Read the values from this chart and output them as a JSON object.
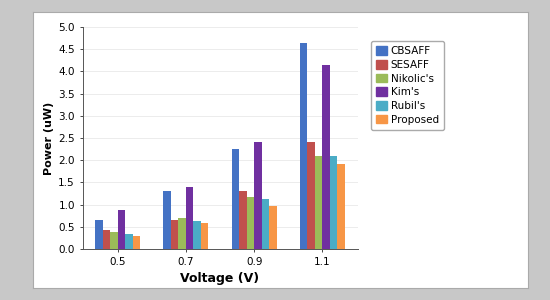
{
  "categories": [
    "0.5",
    "0.7",
    "0.9",
    "1.1"
  ],
  "series": {
    "CBSAFF": [
      0.65,
      1.3,
      2.25,
      4.65
    ],
    "SESAFF": [
      0.42,
      0.65,
      1.3,
      2.42
    ],
    "Nikolic's": [
      0.38,
      0.7,
      1.18,
      2.1
    ],
    "Kim's": [
      0.87,
      1.4,
      2.4,
      4.15
    ],
    "Rubil's": [
      0.33,
      0.62,
      1.13,
      2.1
    ],
    "Proposed": [
      0.3,
      0.58,
      0.97,
      1.92
    ]
  },
  "colors": {
    "CBSAFF": "#4472C4",
    "SESAFF": "#C0504D",
    "Nikolic's": "#9BBB59",
    "Kim's": "#7030A0",
    "Rubil's": "#4BACC6",
    "Proposed": "#F79646"
  },
  "ylabel": "Power (uW)",
  "xlabel": "Voltage (V)",
  "ylim": [
    0,
    5
  ],
  "yticks": [
    0,
    0.5,
    1.0,
    1.5,
    2.0,
    2.5,
    3.0,
    3.5,
    4.0,
    4.5,
    5.0
  ],
  "background_color": "#ffffff",
  "panel_color": "#ffffff",
  "figure_bg": "#c8c8c8",
  "bar_width": 0.11
}
